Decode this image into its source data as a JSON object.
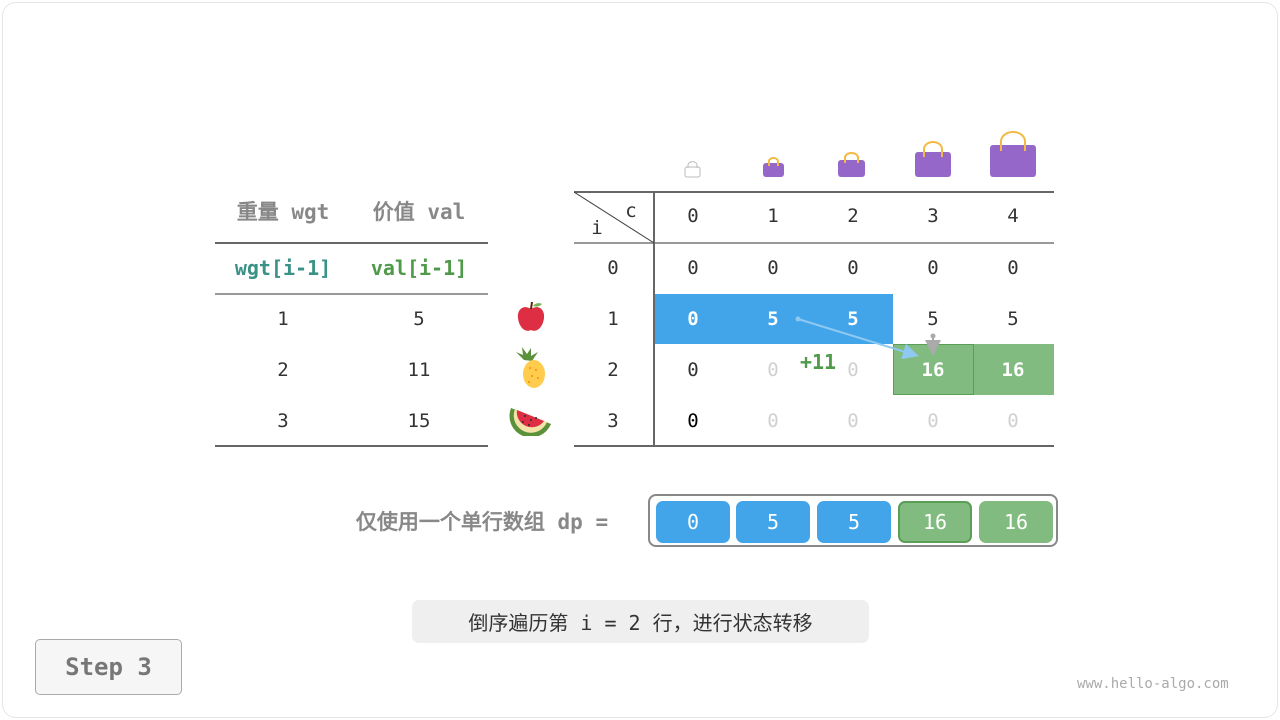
{
  "left_table": {
    "headers": [
      "重量 wgt",
      "价值 val"
    ],
    "subheaders": [
      "wgt[i-1]",
      "val[i-1]"
    ],
    "rows": [
      [
        "1",
        "5"
      ],
      [
        "2",
        "11"
      ],
      [
        "3",
        "15"
      ]
    ],
    "items": [
      "apple-icon",
      "pineapple-icon",
      "watermelon-icon"
    ]
  },
  "dp_table": {
    "corner_c": "c",
    "corner_i": "i",
    "col_headers": [
      "0",
      "1",
      "2",
      "3",
      "4"
    ],
    "row_headers": [
      "0",
      "1",
      "2",
      "3"
    ],
    "cells": [
      [
        "0",
        "0",
        "0",
        "0",
        "0"
      ],
      [
        "0",
        "5",
        "5",
        "5",
        "5"
      ],
      [
        "0",
        "0",
        "0",
        "16",
        "16"
      ],
      [
        "0",
        "0",
        "0",
        "0",
        "0"
      ]
    ],
    "annotation": "+11"
  },
  "dp_array": {
    "label": "仅使用一个单行数组 dp =",
    "values": [
      "0",
      "5",
      "5",
      "16",
      "16"
    ]
  },
  "caption": "倒序遍历第 i = 2 行，进行状态转移",
  "step": "Step 3",
  "watermark": "www.hello-algo.com",
  "colors": {
    "blue": "#42a5ea",
    "green": "#82bb7f",
    "green_border": "#5a9e57",
    "teal": "#3a9186",
    "text_green": "#4e9a48",
    "bag": "#9467c9"
  }
}
